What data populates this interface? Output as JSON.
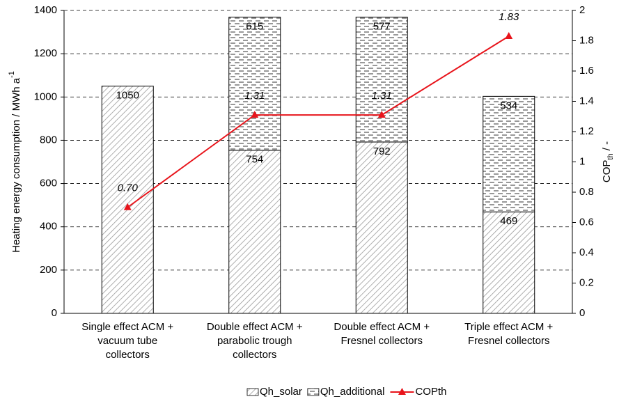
{
  "chart_data": {
    "type": "bar",
    "y_label": "Heating energy consumption / MWh a",
    "y_label_sup": "-1",
    "y2_label": {
      "main": "COP",
      "sub": "th",
      "rest": " / -"
    },
    "categories": [
      "Single effect ACM +\nvacuum tube\ncollectors",
      "Double effect ACM +\nparabolic trough\ncollectors",
      "Double effect ACM +\nFresnel collectors",
      "Triple effect ACM +\nFresnel collectors"
    ],
    "series": [
      {
        "name": "Qh_solar",
        "color": "#999999",
        "pattern": "diagonal",
        "values": [
          1050,
          754,
          792,
          469
        ]
      },
      {
        "name": "Qh_additional",
        "color": "#555555",
        "pattern": "dashes",
        "values": [
          null,
          615,
          577,
          534
        ]
      },
      {
        "name": "COPth",
        "type": "line",
        "color": "#e8141b",
        "axis": "y2",
        "values": [
          0.7,
          1.31,
          1.31,
          1.83
        ],
        "value_labels": [
          "0.70",
          "1.31",
          "1.31",
          "1.83"
        ]
      }
    ],
    "ylim": [
      0,
      1400
    ],
    "yticks": [
      0,
      200,
      400,
      600,
      800,
      1000,
      1200,
      1400
    ],
    "y2lim": [
      0,
      2
    ],
    "y2ticks": [
      0,
      0.2,
      0.4,
      0.6,
      0.8,
      1,
      1.2,
      1.4,
      1.6,
      1.8,
      2
    ],
    "grid": true,
    "legend": "bottom"
  }
}
